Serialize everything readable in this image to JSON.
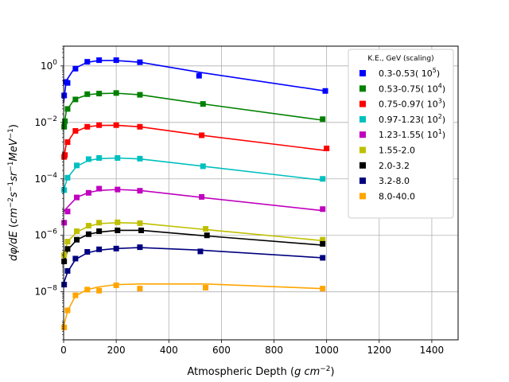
{
  "chart_data": {
    "type": "line",
    "xlabel": "Atmospheric Depth (g cm^-2)",
    "ylabel": "dφ/dE (cm^-2 s^-1 sr^-1 MeV^-1)",
    "xlim": [
      0,
      1500
    ],
    "ylim_log10": [
      -9.7,
      0.7
    ],
    "y_scale": "log",
    "grid": true,
    "legend": {
      "title": "K.E., GeV (scaling)",
      "placement": "top-right"
    },
    "x_ticks": [
      "0",
      "200",
      "400",
      "600",
      "800",
      "1000",
      "1200",
      "1400"
    ],
    "x_tick_values": [
      0,
      200,
      400,
      600,
      800,
      1000,
      1200,
      1400
    ],
    "y_ticks": [
      {
        "base": "10",
        "exp": "0",
        "value": 0
      },
      {
        "base": "10",
        "exp": "−2",
        "value": -2
      },
      {
        "base": "10",
        "exp": "−4",
        "value": -4
      },
      {
        "base": "10",
        "exp": "−6",
        "value": -6
      },
      {
        "base": "10",
        "exp": "−8",
        "value": -8
      }
    ],
    "series": [
      {
        "name": "0.3-0.53",
        "scale": "5",
        "color": "#0000ff",
        "points": [
          [
            2,
            0.09
          ],
          [
            8,
            0.27
          ],
          [
            15,
            0.25
          ],
          [
            45,
            0.8
          ],
          [
            90,
            1.4
          ],
          [
            135,
            1.6
          ],
          [
            200,
            1.6
          ],
          [
            290,
            1.35
          ],
          [
            515,
            0.45
          ],
          [
            995,
            0.13
          ]
        ],
        "fit": [
          [
            0,
            0.05
          ],
          [
            10,
            0.3
          ],
          [
            40,
            0.8
          ],
          [
            90,
            1.35
          ],
          [
            135,
            1.55
          ],
          [
            200,
            1.55
          ],
          [
            290,
            1.35
          ],
          [
            515,
            0.6
          ],
          [
            995,
            0.13
          ]
        ]
      },
      {
        "name": "0.53-0.75",
        "scale": "4",
        "color": "#008000",
        "points": [
          [
            2,
            0.007
          ],
          [
            5,
            0.011
          ],
          [
            15,
            0.03
          ],
          [
            45,
            0.065
          ],
          [
            90,
            0.1
          ],
          [
            135,
            0.105
          ],
          [
            200,
            0.11
          ],
          [
            290,
            0.095
          ],
          [
            530,
            0.045
          ],
          [
            985,
            0.013
          ]
        ],
        "fit": [
          [
            0,
            0.006
          ],
          [
            10,
            0.025
          ],
          [
            40,
            0.065
          ],
          [
            90,
            0.095
          ],
          [
            135,
            0.105
          ],
          [
            200,
            0.108
          ],
          [
            290,
            0.095
          ],
          [
            530,
            0.045
          ],
          [
            985,
            0.012
          ]
        ]
      },
      {
        "name": "0.75-0.97",
        "scale": "3",
        "color": "#ff0000",
        "points": [
          [
            2,
            0.0006
          ],
          [
            5,
            0.0007
          ],
          [
            15,
            0.002
          ],
          [
            45,
            0.005
          ],
          [
            90,
            0.007
          ],
          [
            135,
            0.008
          ],
          [
            200,
            0.008
          ],
          [
            290,
            0.007
          ],
          [
            525,
            0.0035
          ],
          [
            1000,
            0.0012
          ]
        ],
        "fit": [
          [
            0,
            0.0005
          ],
          [
            10,
            0.0017
          ],
          [
            40,
            0.0045
          ],
          [
            90,
            0.007
          ],
          [
            135,
            0.0078
          ],
          [
            200,
            0.0079
          ],
          [
            290,
            0.007
          ],
          [
            525,
            0.0035
          ],
          [
            1000,
            0.001
          ]
        ]
      },
      {
        "name": "0.97-1.23",
        "scale": "2",
        "color": "#00bfbf",
        "points": [
          [
            2,
            4e-05
          ],
          [
            15,
            0.00011
          ],
          [
            50,
            0.0003
          ],
          [
            95,
            0.0005
          ],
          [
            135,
            0.00055
          ],
          [
            205,
            0.00055
          ],
          [
            290,
            0.00052
          ],
          [
            530,
            0.00028
          ],
          [
            985,
            0.0001
          ]
        ],
        "fit": [
          [
            0,
            4e-05
          ],
          [
            15,
            0.00011
          ],
          [
            50,
            0.00028
          ],
          [
            95,
            0.00045
          ],
          [
            135,
            0.00052
          ],
          [
            205,
            0.00055
          ],
          [
            290,
            0.00051
          ],
          [
            530,
            0.00028
          ],
          [
            985,
            9e-05
          ]
        ]
      },
      {
        "name": "1.23-1.55",
        "scale": "1",
        "color": "#bf00bf",
        "points": [
          [
            2,
            2.8e-06
          ],
          [
            15,
            7e-06
          ],
          [
            50,
            2.2e-05
          ],
          [
            95,
            3.2e-05
          ],
          [
            135,
            4.5e-05
          ],
          [
            205,
            4.2e-05
          ],
          [
            290,
            3.8e-05
          ],
          [
            525,
            2.3e-05
          ],
          [
            985,
            8.5e-06
          ]
        ],
        "fit": [
          [
            0,
            7e-06
          ],
          [
            15,
            1e-05
          ],
          [
            50,
            2.2e-05
          ],
          [
            95,
            3.3e-05
          ],
          [
            135,
            3.9e-05
          ],
          [
            205,
            4.2e-05
          ],
          [
            290,
            3.9e-05
          ],
          [
            525,
            2.2e-05
          ],
          [
            985,
            7.5e-06
          ]
        ]
      },
      {
        "name": "1.55-2.0",
        "scale": "",
        "color": "#bfbf00",
        "points": [
          [
            2,
            2e-07
          ],
          [
            15,
            6e-07
          ],
          [
            50,
            1.4e-06
          ],
          [
            95,
            2.2e-06
          ],
          [
            135,
            2.8e-06
          ],
          [
            205,
            2.9e-06
          ],
          [
            290,
            2.7e-06
          ],
          [
            540,
            1.7e-06
          ],
          [
            985,
            7e-07
          ]
        ],
        "fit": [
          [
            0,
            2e-07
          ],
          [
            15,
            6e-07
          ],
          [
            50,
            1.3e-06
          ],
          [
            95,
            2.1e-06
          ],
          [
            135,
            2.6e-06
          ],
          [
            205,
            2.8e-06
          ],
          [
            290,
            2.7e-06
          ],
          [
            540,
            1.6e-06
          ],
          [
            985,
            6.5e-07
          ]
        ]
      },
      {
        "name": "2.0-3.2",
        "scale": "",
        "color": "#000000",
        "points": [
          [
            2,
            1.2e-07
          ],
          [
            15,
            3.3e-07
          ],
          [
            50,
            7e-07
          ],
          [
            95,
            1.1e-06
          ],
          [
            135,
            1.4e-06
          ],
          [
            205,
            1.5e-06
          ],
          [
            295,
            1.5e-06
          ],
          [
            545,
            1e-06
          ],
          [
            985,
            5e-07
          ]
        ],
        "fit": [
          [
            0,
            1e-07
          ],
          [
            15,
            3e-07
          ],
          [
            50,
            7e-07
          ],
          [
            95,
            1.1e-06
          ],
          [
            135,
            1.3e-06
          ],
          [
            205,
            1.5e-06
          ],
          [
            295,
            1.5e-06
          ],
          [
            545,
            9.5e-07
          ],
          [
            985,
            4.5e-07
          ]
        ]
      },
      {
        "name": "3.2-8.0",
        "scale": "",
        "color": "#00007f",
        "points": [
          [
            2,
            1.8e-08
          ],
          [
            15,
            5.5e-08
          ],
          [
            45,
            1.5e-07
          ],
          [
            90,
            2.6e-07
          ],
          [
            135,
            3.2e-07
          ],
          [
            200,
            3.4e-07
          ],
          [
            290,
            3.8e-07
          ],
          [
            520,
            2.7e-07
          ],
          [
            985,
            1.6e-07
          ]
        ],
        "fit": [
          [
            0,
            2e-08
          ],
          [
            15,
            5e-08
          ],
          [
            45,
            1.4e-07
          ],
          [
            90,
            2.4e-07
          ],
          [
            135,
            3e-07
          ],
          [
            200,
            3.4e-07
          ],
          [
            290,
            3.7e-07
          ],
          [
            520,
            3e-07
          ],
          [
            985,
            1.6e-07
          ]
        ]
      },
      {
        "name": "8.0-40.0",
        "scale": "",
        "color": "#ffa500",
        "points": [
          [
            2,
            5.5e-10
          ],
          [
            15,
            2.2e-09
          ],
          [
            45,
            7.5e-09
          ],
          [
            90,
            1.2e-08
          ],
          [
            135,
            1.1e-08
          ],
          [
            200,
            1.7e-08
          ],
          [
            290,
            1.3e-08
          ],
          [
            540,
            1.4e-08
          ],
          [
            985,
            1.3e-08
          ]
        ],
        "fit": [
          [
            0,
            6e-10
          ],
          [
            15,
            2.1e-09
          ],
          [
            45,
            7.2e-09
          ],
          [
            90,
            1.2e-08
          ],
          [
            135,
            1.5e-08
          ],
          [
            200,
            1.8e-08
          ],
          [
            290,
            1.9e-08
          ],
          [
            540,
            1.9e-08
          ],
          [
            985,
            1.3e-08
          ]
        ]
      }
    ]
  }
}
